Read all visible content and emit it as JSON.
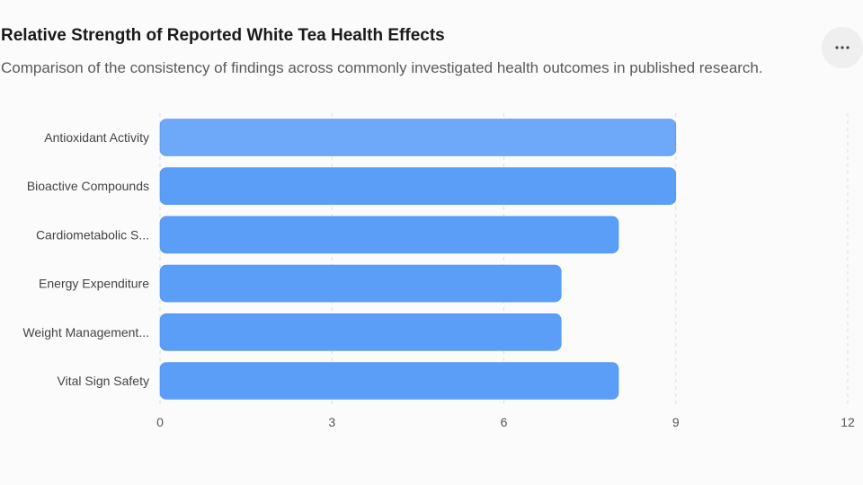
{
  "header": {
    "title": "Relative Strength of Reported White Tea Health Effects",
    "subtitle": "Comparison of the consistency of findings across commonly investigated health outcomes in published research.",
    "menu_icon": "more-horizontal-icon"
  },
  "colors": {
    "bar": "#5b9ef8",
    "bar_highlight": "#6ea8f9",
    "grid": "#dddddd"
  },
  "chart_data": {
    "type": "bar",
    "orientation": "horizontal",
    "title": "Relative Strength of Reported White Tea Health Effects",
    "subtitle": "Comparison of the consistency of findings across commonly investigated health outcomes in published research.",
    "categories": [
      "Antioxidant Activity",
      "Bioactive Compounds",
      "Cardiometabolic S...",
      "Energy Expenditure",
      "Weight Management...",
      "Vital Sign Safety"
    ],
    "values": [
      9,
      9,
      8,
      7,
      7,
      8
    ],
    "xlim": [
      0,
      12
    ],
    "xticks": [
      "0",
      "3",
      "6",
      "9",
      "12"
    ],
    "grid": true,
    "legend": "none"
  }
}
